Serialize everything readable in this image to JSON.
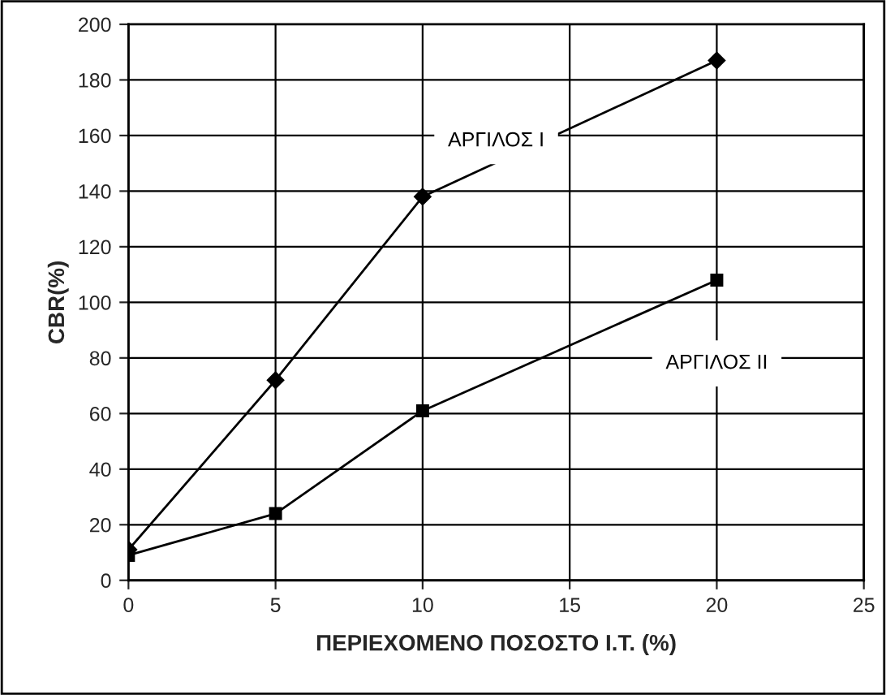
{
  "chart_data": {
    "type": "line",
    "xlabel": "ΠΕΡΙΕΧΟΜΕΝΟ ΠΟΣΟΣΤΟ Ι.Τ. (%)",
    "ylabel": "CBR(%)",
    "x": [
      0,
      5,
      10,
      20
    ],
    "series": [
      {
        "name": "ΑΡΓΙΛΟΣ Ι",
        "color": "#000000",
        "marker": "diamond",
        "values": [
          11,
          72,
          138,
          187
        ]
      },
      {
        "name": "ΑΡΓΙΛΟΣ ΙΙ",
        "color": "#000000",
        "marker": "square",
        "values": [
          9,
          24,
          61,
          108
        ]
      }
    ],
    "xlim": [
      0,
      25
    ],
    "xticks": [
      0,
      5,
      10,
      15,
      20,
      25
    ],
    "ylim": [
      0,
      200
    ],
    "yticks": [
      0,
      20,
      40,
      60,
      80,
      100,
      120,
      140,
      160,
      180,
      200
    ],
    "grid": true,
    "legend": false,
    "line_style": "solid"
  }
}
